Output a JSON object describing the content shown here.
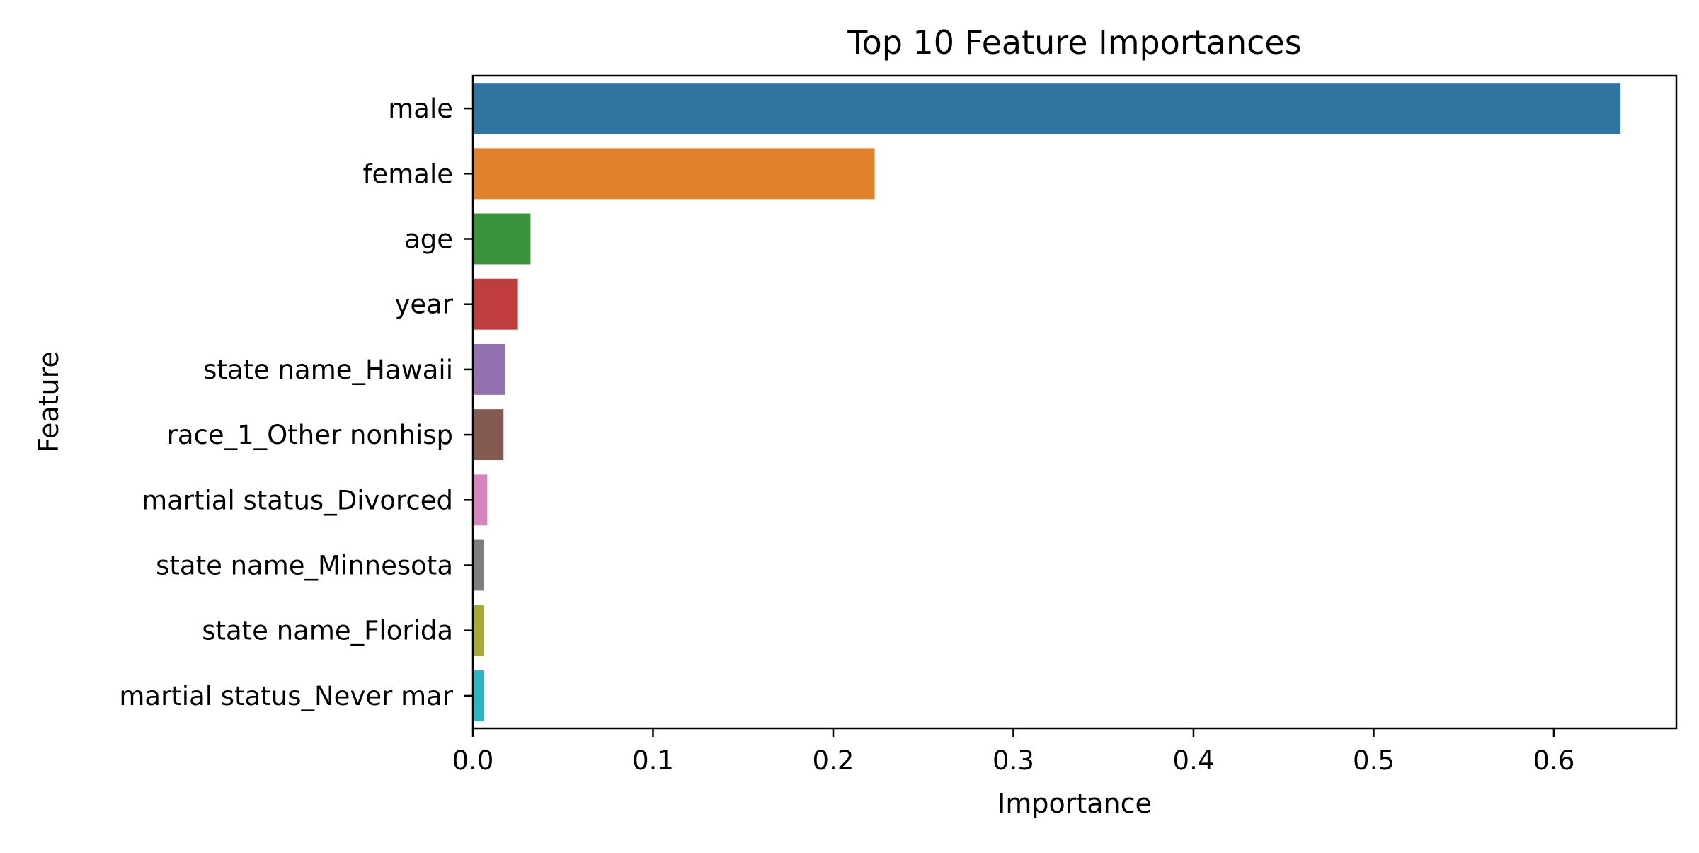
{
  "chart_data": {
    "type": "bar",
    "orientation": "horizontal",
    "title": "Top 10 Feature Importances",
    "xlabel": "Importance",
    "ylabel": "Feature",
    "xlim": [
      0,
      0.668
    ],
    "xticks": [
      0.0,
      0.1,
      0.2,
      0.3,
      0.4,
      0.5,
      0.6
    ],
    "xtick_labels": [
      "0.0",
      "0.1",
      "0.2",
      "0.3",
      "0.4",
      "0.5",
      "0.6"
    ],
    "grid": false,
    "legend": "none",
    "categories": [
      "male",
      "female",
      "age",
      "year",
      "state name_Hawaii",
      "race_1_Other nonhisp",
      "martial status_Divorced",
      "state name_Minnesota",
      "state name_Florida",
      "martial status_Never mar"
    ],
    "values": [
      0.637,
      0.223,
      0.032,
      0.025,
      0.018,
      0.017,
      0.008,
      0.006,
      0.006,
      0.006
    ],
    "colors": [
      "#3274a1",
      "#e1812c",
      "#3a923a",
      "#c03d3e",
      "#9372b2",
      "#845b53",
      "#d684bd",
      "#7f7f7f",
      "#a9aa35",
      "#2eb3c2"
    ]
  }
}
